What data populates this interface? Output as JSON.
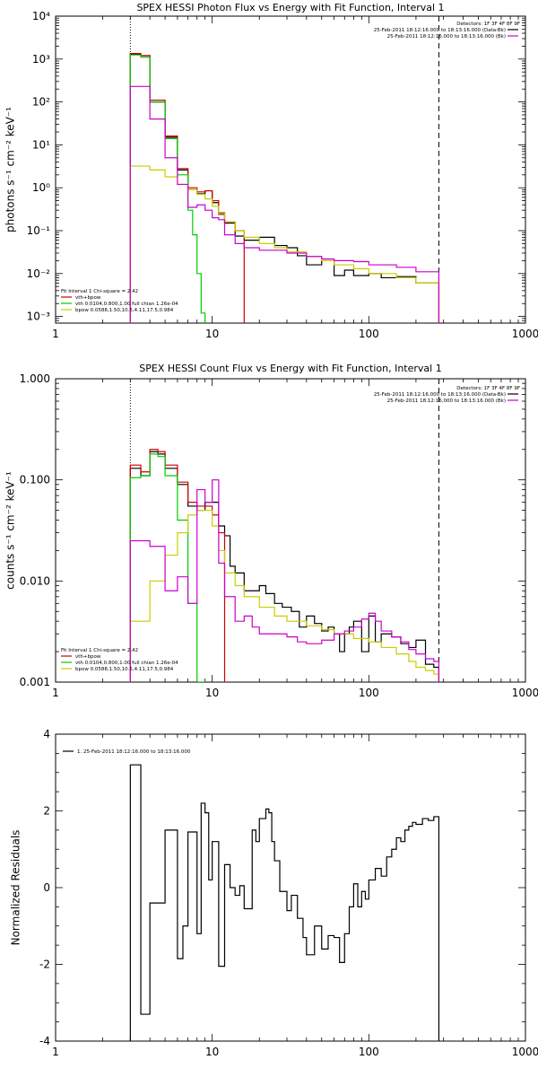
{
  "colors": {
    "observed": "#000000",
    "total_fit": "#cc0000",
    "vth": "#00cc00",
    "bpow": "#cccc00",
    "background": "#cc00cc"
  },
  "chart_data": [
    {
      "type": "line",
      "title": "SPEX HESSI Photon Flux vs Energy with Fit Function, Interval 1",
      "ylabel": "photons s⁻¹ cm⁻² keV⁻¹",
      "xlabel": "",
      "x_scale": "log",
      "y_scale": "log",
      "xlim": [
        1,
        1000
      ],
      "ylim": [
        0.0007,
        10000
      ],
      "x_ticks": [
        1,
        10,
        100,
        1000
      ],
      "x_tick_labels": [
        "1",
        "10",
        "100",
        "1000"
      ],
      "y_ticks": [
        0.001,
        0.01,
        0.1,
        1,
        10,
        100,
        1000,
        10000
      ],
      "y_tick_labels": [
        "10⁻³",
        "10⁻²",
        "10⁻¹",
        "10⁰",
        "10¹",
        "10²",
        "10³",
        "10⁴"
      ],
      "vlines": [
        {
          "x": 3,
          "style": "dotted"
        },
        {
          "x": 280,
          "style": "dashed"
        }
      ],
      "legend_top_right": [
        "Detectors: 1F 3F 4F 8F 9F",
        "25-Feb-2011 18:12:16.000 to 18:13:16.000 (Data-Bk)",
        "25-Feb-2011 18:12:16.000 to 18:13:16.000 (Bk)"
      ],
      "legend_bottom_left": [
        "Fit Interval 1   Chi-square = 2.42",
        "vth+bpow",
        "vth 0.0104,0.800,1.00  full chian 1.26e-04",
        "bpow 0.0588,1.50,10.5,4.11,17.5,0.984"
      ],
      "series": [
        {
          "name": "",
          "key": "observed",
          "edges": [
            3,
            3.5,
            4,
            5,
            6,
            7,
            8,
            9,
            10,
            11,
            12,
            14,
            16,
            20,
            25,
            30,
            35,
            40,
            50,
            60,
            70,
            80,
            100,
            120,
            150,
            200,
            280
          ],
          "values": [
            1300,
            1200,
            100,
            15,
            2.6,
            0.9,
            0.72,
            0.85,
            0.45,
            0.24,
            0.15,
            0.075,
            0.06,
            0.07,
            0.045,
            0.04,
            0.026,
            0.016,
            0.02,
            0.009,
            0.012,
            0.009,
            0.01,
            0.008,
            0.0085,
            0.006
          ]
        },
        {
          "name": "vth+bpow",
          "key": "total_fit",
          "edges": [
            3,
            3.5,
            4,
            5,
            6,
            7,
            8,
            9,
            10,
            11,
            12,
            14,
            16
          ],
          "values": [
            1350,
            1200,
            110,
            16,
            2.8,
            1.0,
            0.8,
            0.85,
            0.5,
            0.26,
            0.16,
            0.1
          ]
        },
        {
          "name": "vth",
          "key": "vth",
          "edges": [
            3,
            3.5,
            4,
            5,
            6,
            7,
            7.5,
            8,
            8.5,
            9
          ],
          "values": [
            1250,
            1100,
            100,
            14,
            2.0,
            0.3,
            0.08,
            0.01,
            0.0012
          ]
        },
        {
          "name": "bpow",
          "key": "bpow",
          "edges": [
            3,
            4,
            5,
            6,
            7,
            8,
            9,
            10,
            11,
            12,
            14,
            16,
            20,
            25,
            30,
            40,
            50,
            60,
            80,
            100,
            150,
            200,
            280
          ],
          "values": [
            3.2,
            2.6,
            1.8,
            1.2,
            0.9,
            0.7,
            0.55,
            0.37,
            0.25,
            0.16,
            0.1,
            0.07,
            0.05,
            0.04,
            0.032,
            0.025,
            0.02,
            0.016,
            0.013,
            0.01,
            0.008,
            0.006
          ]
        },
        {
          "name": "",
          "key": "background",
          "edges": [
            3,
            4,
            5,
            6,
            7,
            8,
            9,
            10,
            11,
            12,
            14,
            16,
            20,
            25,
            30,
            40,
            50,
            60,
            80,
            100,
            150,
            200,
            280
          ],
          "values": [
            230,
            40,
            5,
            1.2,
            0.35,
            0.4,
            0.3,
            0.2,
            0.18,
            0.08,
            0.05,
            0.04,
            0.035,
            0.035,
            0.03,
            0.025,
            0.022,
            0.02,
            0.019,
            0.016,
            0.014,
            0.011
          ]
        }
      ]
    },
    {
      "type": "line",
      "title": "SPEX HESSI Count Flux vs Energy with Fit Function, Interval 1",
      "ylabel": "counts s⁻¹ cm⁻² keV⁻¹",
      "xlabel": "",
      "x_scale": "log",
      "y_scale": "log",
      "xlim": [
        1,
        1000
      ],
      "ylim": [
        0.001,
        1
      ],
      "x_ticks": [
        1,
        10,
        100,
        1000
      ],
      "x_tick_labels": [
        "1",
        "10",
        "100",
        "1000"
      ],
      "y_ticks": [
        0.001,
        0.01,
        0.1,
        1
      ],
      "y_tick_labels": [
        "0.001",
        "0.010",
        "0.100",
        "1.000"
      ],
      "vlines": [
        {
          "x": 3,
          "style": "dotted"
        },
        {
          "x": 280,
          "style": "dashed"
        }
      ],
      "legend_top_right": [
        "Detectors: 1F 3F 4F 8F 9F",
        "25-Feb-2011 18:12:16.000 to 18:13:16.000 (Data-Bk)",
        "25-Feb-2011 18:12:16.000 to 18:13:16.000 (Bk)"
      ],
      "legend_bottom_left": [
        "Fit Interval 1   Chi-square = 2.42",
        "vth+bpow",
        "vth 0.0104,0.800,1.00  full chian 1.26e-04",
        "bpow 0.0588,1.50,10.5,4.11,17.5,0.984"
      ],
      "series": [
        {
          "name": "",
          "key": "observed",
          "edges": [
            3,
            3.5,
            4,
            4.5,
            5,
            6,
            7,
            8,
            9,
            10,
            11,
            12,
            13,
            14,
            16,
            18,
            20,
            22,
            25,
            28,
            32,
            36,
            40,
            45,
            50,
            55,
            60,
            65,
            70,
            75,
            80,
            90,
            100,
            110,
            120,
            140,
            160,
            180,
            200,
            230,
            260,
            280
          ],
          "values": [
            0.13,
            0.11,
            0.19,
            0.18,
            0.13,
            0.09,
            0.055,
            0.05,
            0.06,
            0.06,
            0.035,
            0.028,
            0.014,
            0.012,
            0.008,
            0.008,
            0.009,
            0.0075,
            0.006,
            0.0055,
            0.005,
            0.0035,
            0.0045,
            0.0038,
            0.0032,
            0.0035,
            0.003,
            0.002,
            0.003,
            0.0035,
            0.004,
            0.002,
            0.0045,
            0.0025,
            0.003,
            0.0028,
            0.0024,
            0.0022,
            0.0026,
            0.0015,
            0.0014
          ]
        },
        {
          "name": "vth+bpow",
          "key": "total_fit",
          "edges": [
            3,
            3.5,
            4,
            4.5,
            5,
            6,
            7,
            8,
            9,
            10,
            11,
            12
          ],
          "values": [
            0.14,
            0.12,
            0.2,
            0.19,
            0.14,
            0.095,
            0.06,
            0.055,
            0.055,
            0.045,
            0.03
          ]
        },
        {
          "name": "vth",
          "key": "vth",
          "edges": [
            3,
            3.5,
            4,
            4.5,
            5,
            6,
            7,
            8,
            9
          ],
          "values": [
            0.105,
            0.11,
            0.18,
            0.17,
            0.11,
            0.04,
            0.006,
            0.001
          ]
        },
        {
          "name": "bpow",
          "key": "bpow",
          "edges": [
            3,
            4,
            5,
            6,
            7,
            8,
            9,
            10,
            11,
            12,
            14,
            16,
            20,
            25,
            30,
            40,
            50,
            60,
            80,
            100,
            120,
            150,
            180,
            200,
            230,
            260,
            280
          ],
          "values": [
            0.004,
            0.01,
            0.018,
            0.03,
            0.045,
            0.05,
            0.05,
            0.035,
            0.02,
            0.012,
            0.009,
            0.007,
            0.0055,
            0.0045,
            0.004,
            0.0036,
            0.0033,
            0.003,
            0.0027,
            0.0025,
            0.0022,
            0.0019,
            0.0016,
            0.0014,
            0.0013,
            0.0012
          ]
        },
        {
          "name": "",
          "key": "background",
          "edges": [
            3,
            4,
            5,
            6,
            7,
            8,
            9,
            10,
            11,
            12,
            14,
            16,
            18,
            20,
            25,
            30,
            35,
            40,
            50,
            60,
            70,
            80,
            90,
            100,
            110,
            120,
            140,
            160,
            180,
            200,
            230,
            260,
            280
          ],
          "values": [
            0.025,
            0.022,
            0.008,
            0.011,
            0.006,
            0.08,
            0.06,
            0.1,
            0.015,
            0.007,
            0.004,
            0.0045,
            0.0035,
            0.003,
            0.003,
            0.0028,
            0.0025,
            0.0024,
            0.0026,
            0.003,
            0.0032,
            0.0035,
            0.0042,
            0.0048,
            0.004,
            0.0032,
            0.0028,
            0.0025,
            0.0021,
            0.0019,
            0.0017,
            0.0016
          ]
        }
      ]
    },
    {
      "type": "line",
      "title": "",
      "ylabel": "Normalized Residuals",
      "xlabel": "",
      "x_scale": "log",
      "y_scale": "linear",
      "xlim": [
        1,
        1000
      ],
      "ylim": [
        -4,
        4
      ],
      "x_ticks": [
        1,
        10,
        100,
        1000
      ],
      "x_tick_labels": [
        "1",
        "10",
        "100",
        "1000"
      ],
      "y_ticks": [
        -4,
        -2,
        0,
        2,
        4
      ],
      "y_tick_labels": [
        "-4",
        "-2",
        "0",
        "2",
        "4"
      ],
      "legend_top_left": [
        "1. 25-Feb-2011 18:12:16.000 to 18:13:16.000"
      ],
      "series": [
        {
          "name": "1. 25-Feb-2011 18:12:16.000 to 18:13:16.000",
          "key": "observed",
          "edges": [
            3,
            3.5,
            4,
            5,
            6,
            6.5,
            7,
            8,
            8.5,
            9,
            9.5,
            10,
            11,
            12,
            13,
            14,
            15,
            16,
            18,
            19,
            20,
            22,
            23,
            24,
            25,
            27,
            30,
            32,
            35,
            38,
            40,
            45,
            50,
            55,
            60,
            65,
            70,
            75,
            80,
            85,
            90,
            95,
            100,
            110,
            120,
            130,
            140,
            150,
            160,
            170,
            180,
            190,
            200,
            220,
            240,
            260,
            280
          ],
          "values": [
            3.2,
            -3.3,
            -0.4,
            1.5,
            -1.85,
            -1.0,
            1.45,
            -1.2,
            2.2,
            1.95,
            0.2,
            1.2,
            -2.05,
            0.6,
            0.0,
            -0.2,
            0.05,
            -0.55,
            1.5,
            1.2,
            1.8,
            2.05,
            1.95,
            1.2,
            0.7,
            -0.1,
            -0.6,
            -0.2,
            -0.8,
            -1.3,
            -1.75,
            -1.0,
            -1.6,
            -1.25,
            -1.3,
            -1.95,
            -1.2,
            -0.5,
            0.1,
            -0.5,
            -0.1,
            -0.3,
            0.2,
            0.5,
            0.3,
            0.8,
            1.0,
            1.3,
            1.2,
            1.5,
            1.6,
            1.7,
            1.65,
            1.8,
            1.75,
            1.85
          ]
        }
      ]
    }
  ]
}
